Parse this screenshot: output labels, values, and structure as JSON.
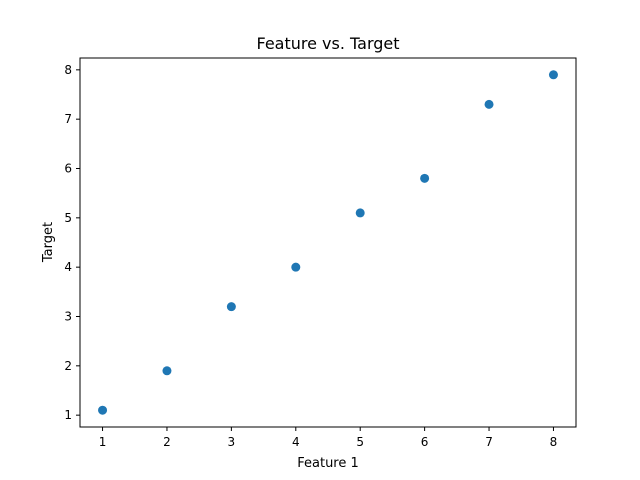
{
  "chart_data": {
    "type": "scatter",
    "title": "Feature vs. Target",
    "xlabel": "Feature 1",
    "ylabel": "Target",
    "xlim": [
      0.65,
      8.35
    ],
    "ylim": [
      0.76,
      8.24
    ],
    "xticks": [
      1,
      2,
      3,
      4,
      5,
      6,
      7,
      8
    ],
    "yticks": [
      1,
      2,
      3,
      4,
      5,
      6,
      7,
      8
    ],
    "grid": false,
    "marker_color": "#1f77b4",
    "series": [
      {
        "x": [
          1,
          2,
          3,
          4,
          5,
          6,
          7,
          8
        ],
        "y": [
          1.1,
          1.9,
          3.2,
          4.0,
          5.1,
          5.8,
          7.3,
          7.9
        ]
      }
    ]
  }
}
